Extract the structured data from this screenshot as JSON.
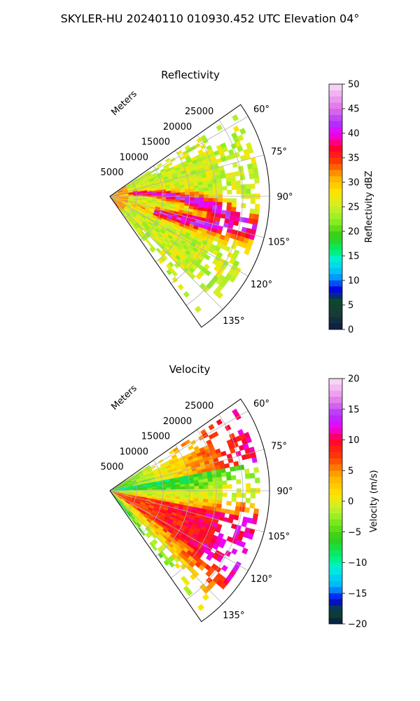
{
  "figure": {
    "title": "SKYLER-HU  20240110  010930.452 UTC Elevation 04°"
  },
  "chart_data": [
    {
      "type": "heatmap",
      "projection": "polar-sector",
      "title": "Reflectivity",
      "range_label": "Meters",
      "range_ticks": [
        5000,
        10000,
        15000,
        20000,
        25000
      ],
      "range_tick_labels": [
        "5000",
        "10000",
        "15000",
        "20000",
        "25000"
      ],
      "azimuth_ticks": [
        60,
        75,
        90,
        105,
        120,
        135
      ],
      "azimuth_tick_labels": [
        "60°",
        "75°",
        "90°",
        "105°",
        "120°",
        "135°"
      ],
      "azimuth_range": [
        55,
        145
      ],
      "range_max": 30000,
      "grid": true,
      "colorbar": {
        "label": "Reflectivity dBZ",
        "vmin": 0,
        "vmax": 50,
        "ticks": [
          0,
          5,
          10,
          15,
          20,
          25,
          30,
          35,
          40,
          45,
          50
        ],
        "tick_labels": [
          "0",
          "5",
          "10",
          "15",
          "20",
          "25",
          "30",
          "35",
          "40",
          "45",
          "50"
        ]
      },
      "colormap_stops": [
        {
          "value": 0,
          "color": "#0b1a4a"
        },
        {
          "value": 3,
          "color": "#1a3a35"
        },
        {
          "value": 6,
          "color": "#0a4a2a"
        },
        {
          "value": 8,
          "color": "#0000e8"
        },
        {
          "value": 11,
          "color": "#00b0ff"
        },
        {
          "value": 14,
          "color": "#00f0e0"
        },
        {
          "value": 16,
          "color": "#00f070"
        },
        {
          "value": 19,
          "color": "#33cc11"
        },
        {
          "value": 22,
          "color": "#88ee22"
        },
        {
          "value": 25,
          "color": "#ccf028"
        },
        {
          "value": 28,
          "color": "#ffe400"
        },
        {
          "value": 31,
          "color": "#ffb000"
        },
        {
          "value": 34,
          "color": "#ff4000"
        },
        {
          "value": 37,
          "color": "#ff0030"
        },
        {
          "value": 40,
          "color": "#f000ff"
        },
        {
          "value": 42,
          "color": "#b030ff"
        },
        {
          "value": 45,
          "color": "#e070e8"
        },
        {
          "value": 48,
          "color": "#f0b0f0"
        },
        {
          "value": 50,
          "color": "#f8e0f8"
        }
      ],
      "field_description_values": {
        "typical_dbz": 24,
        "core_dbz": 38
      }
    },
    {
      "type": "heatmap",
      "projection": "polar-sector",
      "title": "Velocity",
      "range_label": "Meters",
      "range_ticks": [
        5000,
        10000,
        15000,
        20000,
        25000
      ],
      "range_tick_labels": [
        "5000",
        "10000",
        "15000",
        "20000",
        "25000"
      ],
      "azimuth_ticks": [
        60,
        75,
        90,
        105,
        120,
        135
      ],
      "azimuth_tick_labels": [
        "60°",
        "75°",
        "90°",
        "105°",
        "120°",
        "135°"
      ],
      "azimuth_range": [
        55,
        145
      ],
      "range_max": 30000,
      "grid": true,
      "colorbar": {
        "label": "Velocity (m/s)",
        "vmin": -20,
        "vmax": 20,
        "ticks": [
          -20,
          -15,
          -10,
          -5,
          0,
          5,
          10,
          15,
          20
        ],
        "tick_labels": [
          "−20",
          "−15",
          "−10",
          "−5",
          "0",
          "5",
          "10",
          "15",
          "20"
        ]
      },
      "colormap_stops": [
        {
          "value": -20,
          "color": "#0b1a4a"
        },
        {
          "value": -18,
          "color": "#0a4a2a"
        },
        {
          "value": -16,
          "color": "#0000e8"
        },
        {
          "value": -14,
          "color": "#00b0ff"
        },
        {
          "value": -11,
          "color": "#00f0e0"
        },
        {
          "value": -9,
          "color": "#00f070"
        },
        {
          "value": -6,
          "color": "#33cc11"
        },
        {
          "value": -3,
          "color": "#88ee22"
        },
        {
          "value": -1,
          "color": "#ccf028"
        },
        {
          "value": 1,
          "color": "#ffe400"
        },
        {
          "value": 4,
          "color": "#ffb000"
        },
        {
          "value": 7,
          "color": "#ff4000"
        },
        {
          "value": 10,
          "color": "#ff0030"
        },
        {
          "value": 12,
          "color": "#f000ff"
        },
        {
          "value": 14,
          "color": "#b030ff"
        },
        {
          "value": 16,
          "color": "#e070e8"
        },
        {
          "value": 18,
          "color": "#f0b0f0"
        },
        {
          "value": 20,
          "color": "#f8e0f8"
        }
      ]
    }
  ]
}
